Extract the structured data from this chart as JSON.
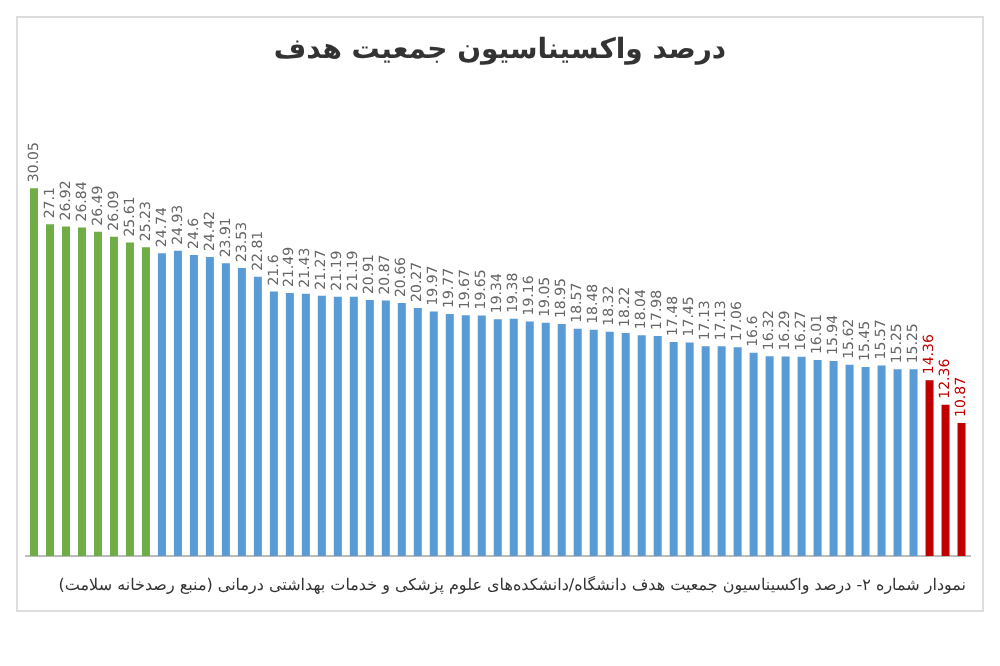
{
  "chart_data": {
    "type": "bar",
    "title": "درصد واکسیناسیون جمعیت هدف",
    "categories": [
      null,
      null,
      null,
      null,
      null,
      null,
      null,
      null,
      null,
      null,
      null,
      null,
      null,
      null,
      null,
      null,
      null,
      null,
      null,
      null,
      null,
      null,
      null,
      null,
      null,
      null,
      null,
      null,
      null,
      null,
      null,
      null,
      null,
      null,
      null,
      null,
      null,
      null,
      null,
      null,
      null,
      null,
      null,
      null,
      null,
      null,
      null,
      null,
      null,
      null,
      null,
      null,
      null,
      null,
      null,
      null,
      null,
      null,
      null
    ],
    "values": [
      30.05,
      27.1,
      26.92,
      26.84,
      26.49,
      26.09,
      25.61,
      25.23,
      24.74,
      24.93,
      24.6,
      24.42,
      23.91,
      23.53,
      22.81,
      21.6,
      21.49,
      21.43,
      21.27,
      21.19,
      21.19,
      20.91,
      20.87,
      20.66,
      20.27,
      19.97,
      19.77,
      19.67,
      19.65,
      19.34,
      19.38,
      19.16,
      19.05,
      18.95,
      18.57,
      18.48,
      18.32,
      18.22,
      18.04,
      17.98,
      17.48,
      17.45,
      17.13,
      17.13,
      17.06,
      16.6,
      16.32,
      16.29,
      16.27,
      16.01,
      15.94,
      15.62,
      15.45,
      15.57,
      15.25,
      15.25,
      14.36,
      12.36,
      10.87
    ],
    "colors": [
      "#70ad47",
      "#70ad47",
      "#70ad47",
      "#70ad47",
      "#70ad47",
      "#70ad47",
      "#70ad47",
      "#70ad47",
      "#5b9bd5",
      "#5b9bd5",
      "#5b9bd5",
      "#5b9bd5",
      "#5b9bd5",
      "#5b9bd5",
      "#5b9bd5",
      "#5b9bd5",
      "#5b9bd5",
      "#5b9bd5",
      "#5b9bd5",
      "#5b9bd5",
      "#5b9bd5",
      "#5b9bd5",
      "#5b9bd5",
      "#5b9bd5",
      "#5b9bd5",
      "#5b9bd5",
      "#5b9bd5",
      "#5b9bd5",
      "#5b9bd5",
      "#5b9bd5",
      "#5b9bd5",
      "#5b9bd5",
      "#5b9bd5",
      "#5b9bd5",
      "#5b9bd5",
      "#5b9bd5",
      "#5b9bd5",
      "#5b9bd5",
      "#5b9bd5",
      "#5b9bd5",
      "#5b9bd5",
      "#5b9bd5",
      "#5b9bd5",
      "#5b9bd5",
      "#5b9bd5",
      "#5b9bd5",
      "#5b9bd5",
      "#5b9bd5",
      "#5b9bd5",
      "#5b9bd5",
      "#5b9bd5",
      "#5b9bd5",
      "#5b9bd5",
      "#5b9bd5",
      "#5b9bd5",
      "#5b9bd5",
      "#c00000",
      "#c00000",
      "#c00000"
    ],
    "data_labels": true,
    "grid": false,
    "legend": false,
    "annotations": [
      "نمودار شماره ۲- درصد واکسیناسیون جمعیت هدف دانشگاه/دانشکده‌های علوم پزشکی و خدمات بهداشتی درمانی (منبع رصدخانه سلامت)"
    ]
  }
}
